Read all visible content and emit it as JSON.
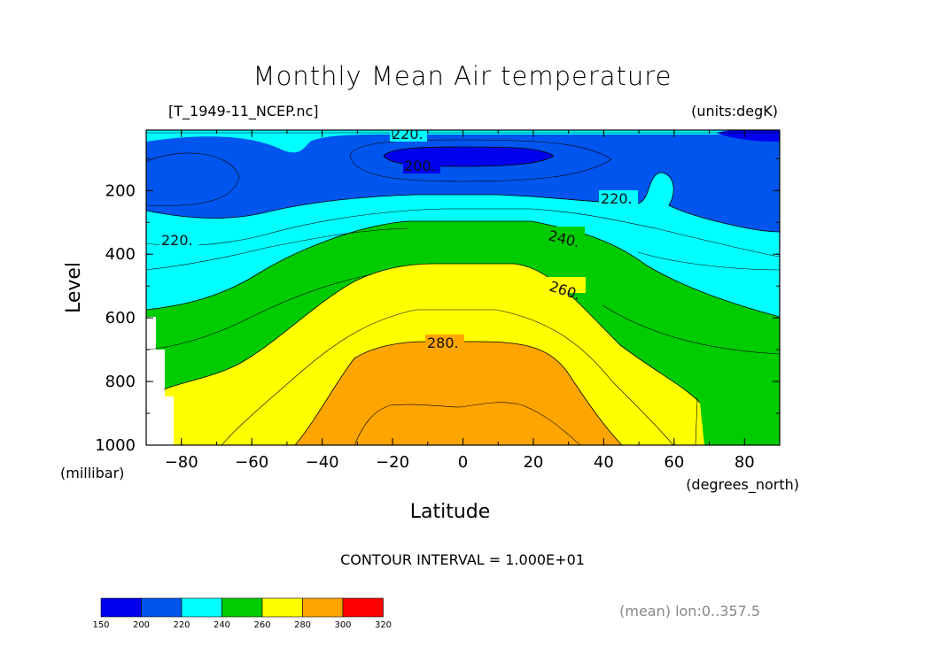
{
  "chart_data": {
    "type": "contour",
    "title": "Monthly Mean Air temperature",
    "source_label": "[T_1949-11_NCEP.nc]",
    "units_label": "(units:degK)",
    "xlabel": "Latitude",
    "x_units": "(degrees_north)",
    "ylabel": "Level",
    "y_units": "(millibar)",
    "xlim": [
      -90,
      90
    ],
    "ylim": [
      1000,
      10
    ],
    "x_ticks": [
      "-80",
      "-60",
      "-40",
      "-20",
      "0",
      "20",
      "40",
      "60",
      "80"
    ],
    "x_tick_values": [
      -80,
      -60,
      -40,
      -20,
      0,
      20,
      40,
      60,
      80
    ],
    "y_ticks": [
      "200",
      "400",
      "600",
      "800",
      "1000"
    ],
    "y_tick_values": [
      200,
      400,
      600,
      800,
      1000
    ],
    "contour_interval_text": "CONTOUR INTERVAL = 1.000E+01",
    "contour_labels": [
      "220.",
      "200.",
      "220.",
      "220.",
      "240.",
      "260.",
      "280."
    ],
    "footnote": "(mean) lon:0..357.5",
    "colorbar": {
      "levels": [
        "150",
        "200",
        "220",
        "240",
        "260",
        "280",
        "300",
        "320"
      ],
      "colors": [
        "#0000ee",
        "#0055ee",
        "#00ffff",
        "#00cc00",
        "#ffff00",
        "#ffa500",
        "#ff0000"
      ]
    },
    "bands": [
      {
        "range": "200-220",
        "color": "#0055ee"
      },
      {
        "range": "220-240",
        "color": "#00ffff"
      },
      {
        "range": "240-260",
        "color": "#00cc00"
      },
      {
        "range": "260-280",
        "color": "#ffff00"
      },
      {
        "range": "280-300",
        "color": "#ffa500"
      },
      {
        "range": "150-200",
        "color": "#0000ee"
      }
    ]
  }
}
